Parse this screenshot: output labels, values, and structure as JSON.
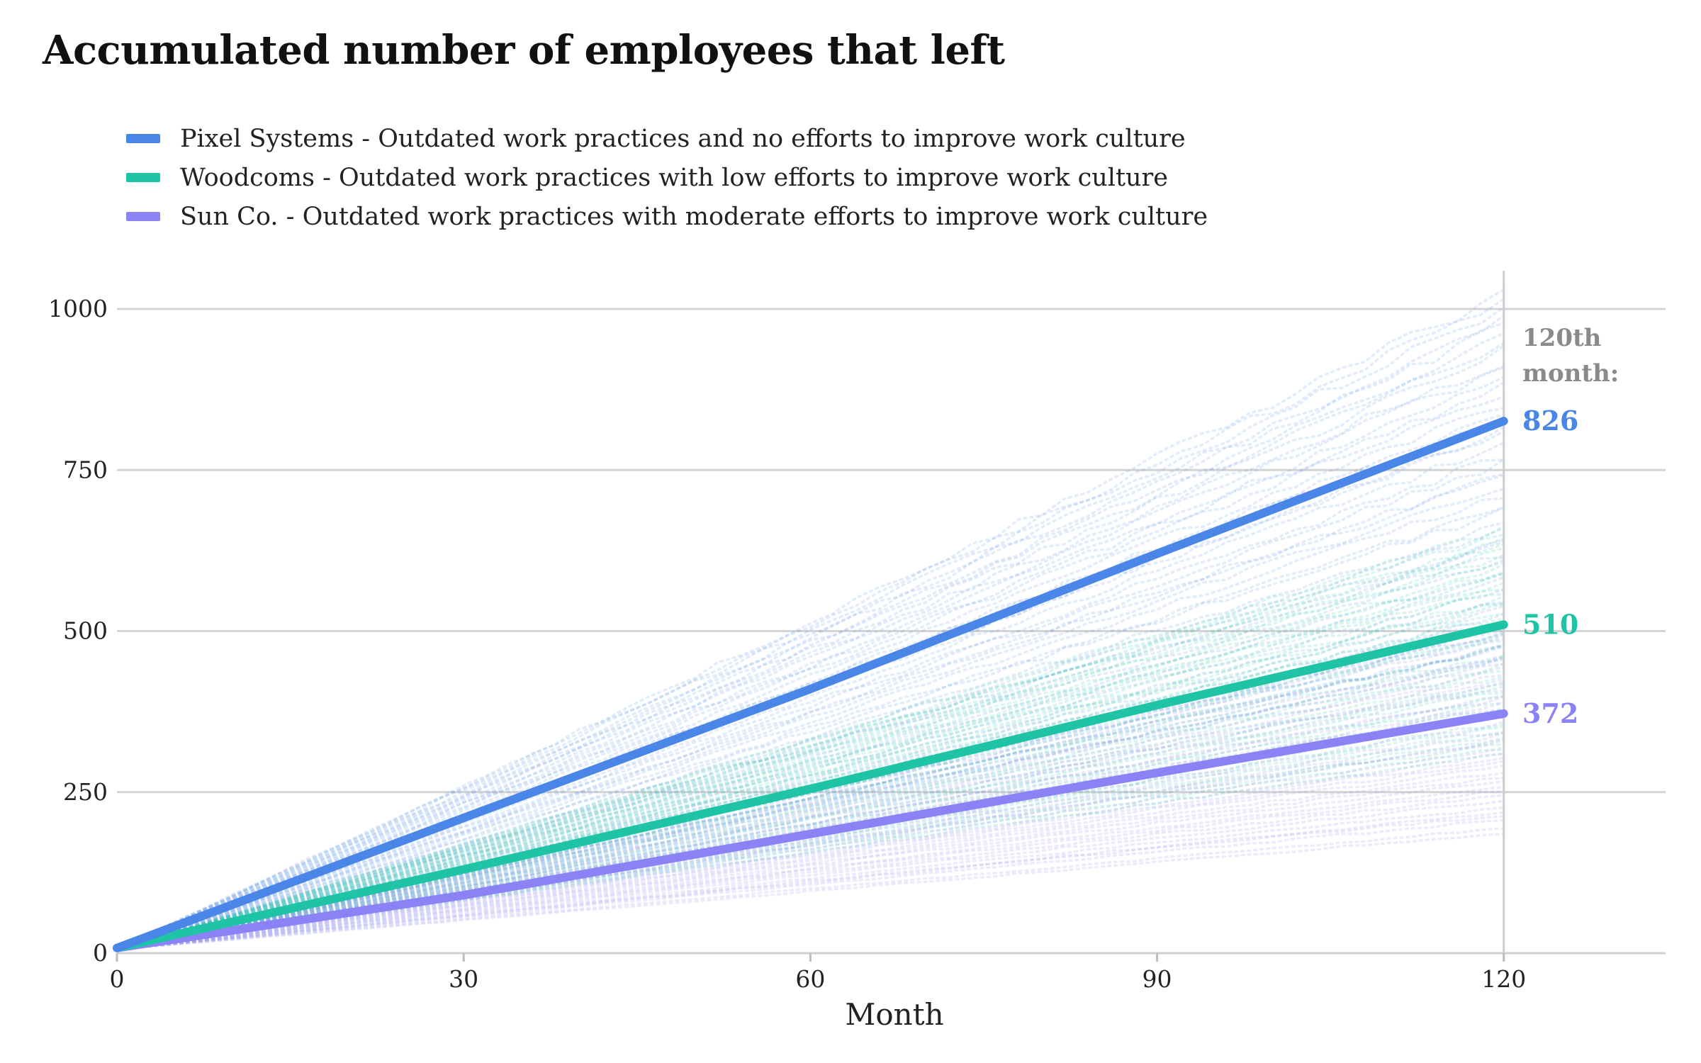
{
  "title": "Accumulated number of employees that left",
  "legend": [
    {
      "label": "Pixel Systems - Outdated work practices and no efforts to improve work culture",
      "color": "#4A86E8"
    },
    {
      "label": "Woodcoms - Outdated work practices with low efforts to improve work culture",
      "color": "#1EC4A5"
    },
    {
      "label": "Sun Co. - Outdated work practices with moderate efforts to improve work culture",
      "color": "#8B83F5"
    }
  ],
  "end_label": {
    "line1": "120th",
    "line2": "month:"
  },
  "chart_data": {
    "type": "line",
    "title": "Accumulated number of employees that left",
    "xlabel": "Month",
    "ylabel": "",
    "xlim": [
      0,
      134
    ],
    "ylim": [
      0,
      1000
    ],
    "x_ticks": [
      0,
      30,
      60,
      90,
      120
    ],
    "y_ticks": [
      0,
      250,
      500,
      750,
      1000
    ],
    "grid": "horizontal",
    "reference_line_x": 120,
    "x": [
      0,
      30,
      60,
      90,
      120
    ],
    "series": [
      {
        "name": "Pixel Systems",
        "values": [
          8,
          210,
          410,
          620,
          826
        ],
        "end_value": "826",
        "color": "#4A86E8",
        "simulation_spread": [
          0.55,
          1.25
        ]
      },
      {
        "name": "Woodcoms",
        "values": [
          8,
          130,
          255,
          385,
          510
        ],
        "end_value": "510",
        "color": "#1EC4A5",
        "simulation_spread": [
          0.6,
          1.3
        ]
      },
      {
        "name": "Sun Co.",
        "values": [
          8,
          90,
          185,
          280,
          372
        ],
        "end_value": "372",
        "color": "#8B83F5",
        "simulation_spread": [
          0.5,
          1.4
        ]
      }
    ]
  }
}
